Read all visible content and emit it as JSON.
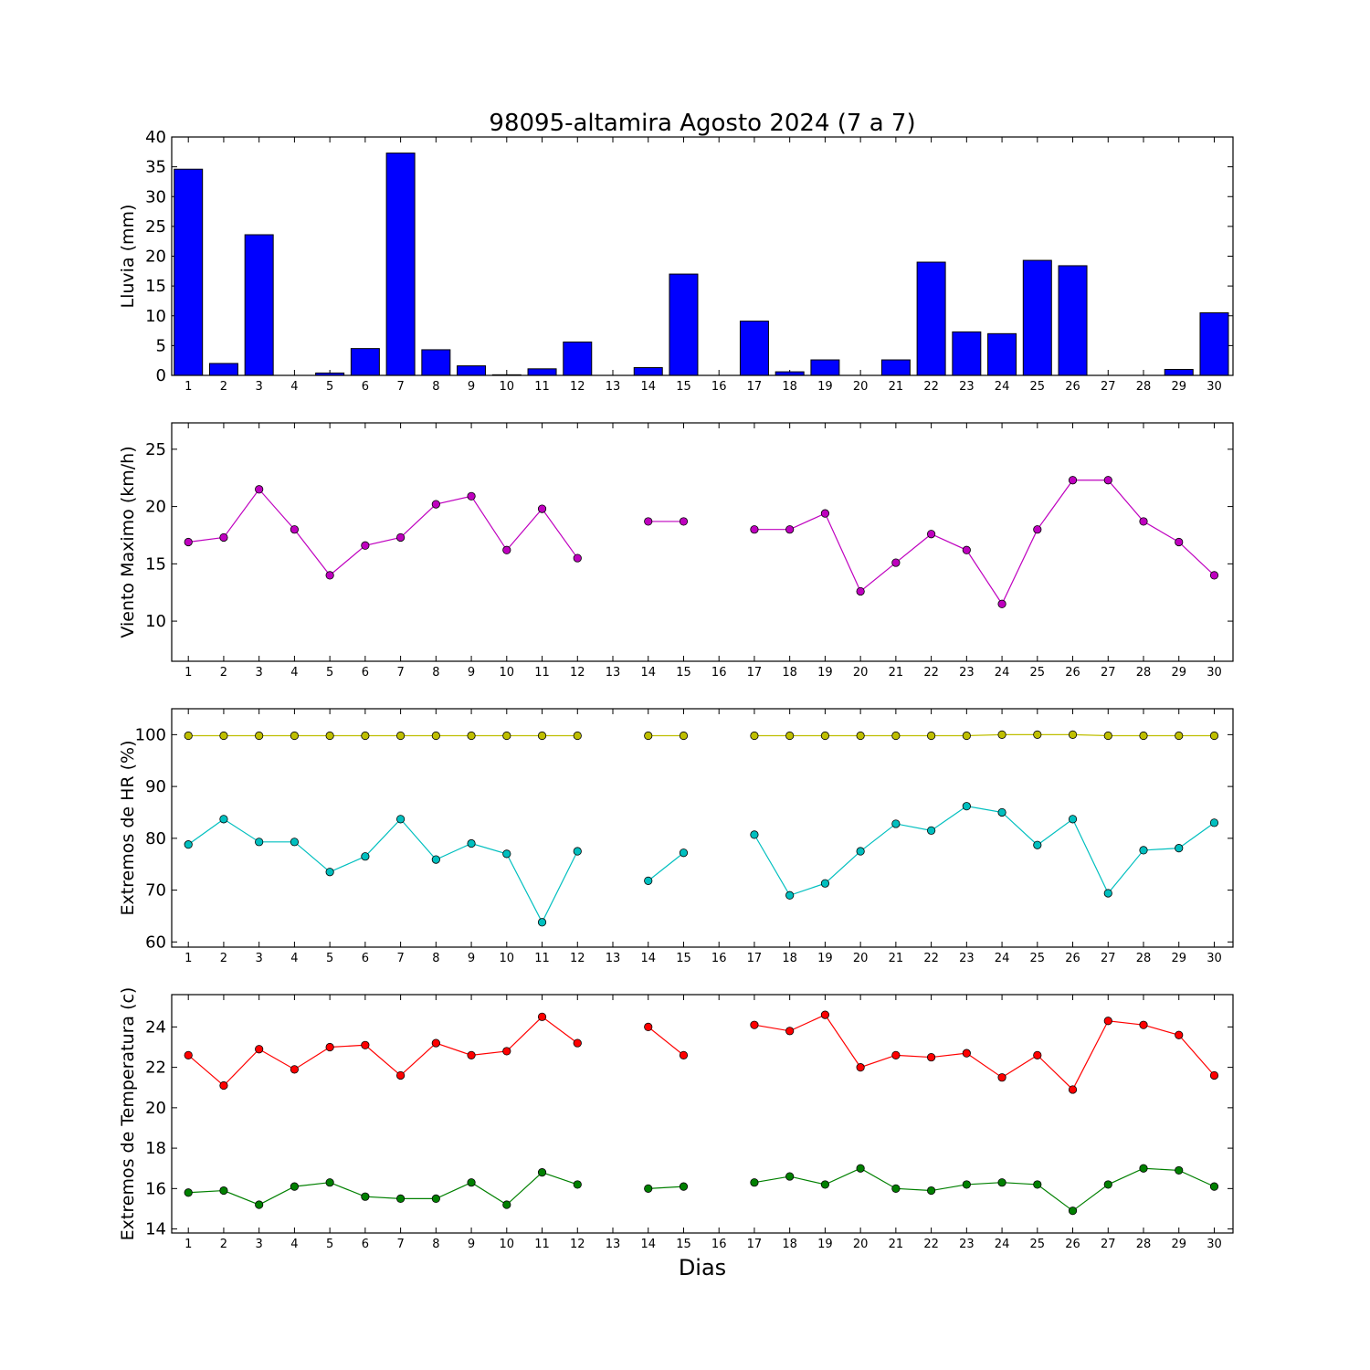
{
  "title": "98095-altamira Agosto 2024  (7 a 7)",
  "xlabel": "Dias",
  "chart_data": [
    {
      "type": "bar",
      "ylabel": "Lluvia (mm)",
      "ylim": [
        0,
        40
      ],
      "yticks": [
        0,
        5,
        10,
        15,
        20,
        25,
        30,
        35,
        40
      ],
      "categories": [
        1,
        2,
        3,
        4,
        5,
        6,
        7,
        8,
        9,
        10,
        11,
        12,
        13,
        14,
        15,
        16,
        17,
        18,
        19,
        20,
        21,
        22,
        23,
        24,
        25,
        26,
        27,
        28,
        29,
        30
      ],
      "color": "#0000ff",
      "values": [
        34.6,
        2.0,
        23.6,
        0,
        0.4,
        4.5,
        37.3,
        4.3,
        1.6,
        0.1,
        1.1,
        5.6,
        0,
        1.3,
        17.0,
        0,
        9.1,
        0.6,
        2.6,
        0,
        2.6,
        19.0,
        7.3,
        7.0,
        19.3,
        18.4,
        0,
        0,
        1.0,
        10.5
      ]
    },
    {
      "type": "line",
      "ylabel": "Viento Maximo (km/h)",
      "ylim": [
        6.5,
        27.3
      ],
      "yticks": [
        10,
        15,
        20,
        25
      ],
      "x": [
        1,
        2,
        3,
        4,
        5,
        6,
        7,
        8,
        9,
        10,
        11,
        12,
        13,
        14,
        15,
        16,
        17,
        18,
        19,
        20,
        21,
        22,
        23,
        24,
        25,
        26,
        27,
        28,
        29,
        30
      ],
      "series": [
        {
          "color": "#bf00bf",
          "values": [
            16.9,
            17.3,
            21.5,
            18.0,
            14.0,
            16.6,
            17.3,
            20.2,
            20.9,
            16.2,
            19.8,
            15.5,
            null,
            18.7,
            18.7,
            null,
            18.0,
            18.0,
            19.4,
            12.6,
            15.1,
            17.6,
            16.2,
            11.5,
            18.0,
            22.3,
            22.3,
            18.7,
            16.9,
            14.0
          ]
        }
      ]
    },
    {
      "type": "line",
      "ylabel": "Extremos de HR (%)",
      "ylim": [
        59,
        105
      ],
      "yticks": [
        60,
        70,
        80,
        90,
        100
      ],
      "x": [
        1,
        2,
        3,
        4,
        5,
        6,
        7,
        8,
        9,
        10,
        11,
        12,
        13,
        14,
        15,
        16,
        17,
        18,
        19,
        20,
        21,
        22,
        23,
        24,
        25,
        26,
        27,
        28,
        29,
        30
      ],
      "series": [
        {
          "color": "#bfbf00",
          "values": [
            99.8,
            99.8,
            99.8,
            99.8,
            99.8,
            99.8,
            99.8,
            99.8,
            99.8,
            99.8,
            99.8,
            99.8,
            null,
            99.8,
            99.8,
            null,
            99.8,
            99.8,
            99.8,
            99.8,
            99.8,
            99.8,
            99.8,
            100,
            100,
            100,
            99.8,
            99.8,
            99.8,
            99.8
          ]
        },
        {
          "color": "#00bfbf",
          "values": [
            78.8,
            83.7,
            79.3,
            79.3,
            73.5,
            76.5,
            83.7,
            75.9,
            79.0,
            77.0,
            63.8,
            77.5,
            null,
            71.8,
            77.2,
            null,
            80.7,
            69.0,
            71.3,
            77.5,
            82.8,
            81.5,
            86.2,
            85.0,
            78.7,
            83.7,
            69.4,
            77.7,
            78.1,
            83.0
          ]
        }
      ]
    },
    {
      "type": "line",
      "ylabel": "Extremos de Temperatura (c)",
      "ylim": [
        13.8,
        25.6
      ],
      "yticks": [
        14,
        16,
        18,
        20,
        22,
        24
      ],
      "x": [
        1,
        2,
        3,
        4,
        5,
        6,
        7,
        8,
        9,
        10,
        11,
        12,
        13,
        14,
        15,
        16,
        17,
        18,
        19,
        20,
        21,
        22,
        23,
        24,
        25,
        26,
        27,
        28,
        29,
        30
      ],
      "series": [
        {
          "color": "#ff0000",
          "values": [
            22.6,
            21.1,
            22.9,
            21.9,
            23.0,
            23.1,
            21.6,
            23.2,
            22.6,
            22.8,
            24.5,
            23.2,
            null,
            24.0,
            22.6,
            null,
            24.1,
            23.8,
            24.6,
            22.0,
            22.6,
            22.5,
            22.7,
            21.5,
            22.6,
            20.9,
            24.3,
            24.1,
            23.6,
            21.6
          ]
        },
        {
          "color": "#008000",
          "values": [
            15.8,
            15.9,
            15.2,
            16.1,
            16.3,
            15.6,
            15.5,
            15.5,
            16.3,
            15.2,
            16.8,
            16.2,
            null,
            16.0,
            16.1,
            null,
            16.3,
            16.6,
            16.2,
            17.0,
            16.0,
            15.9,
            16.2,
            16.3,
            16.2,
            14.9,
            16.2,
            17.0,
            16.9,
            16.1
          ]
        }
      ]
    }
  ]
}
